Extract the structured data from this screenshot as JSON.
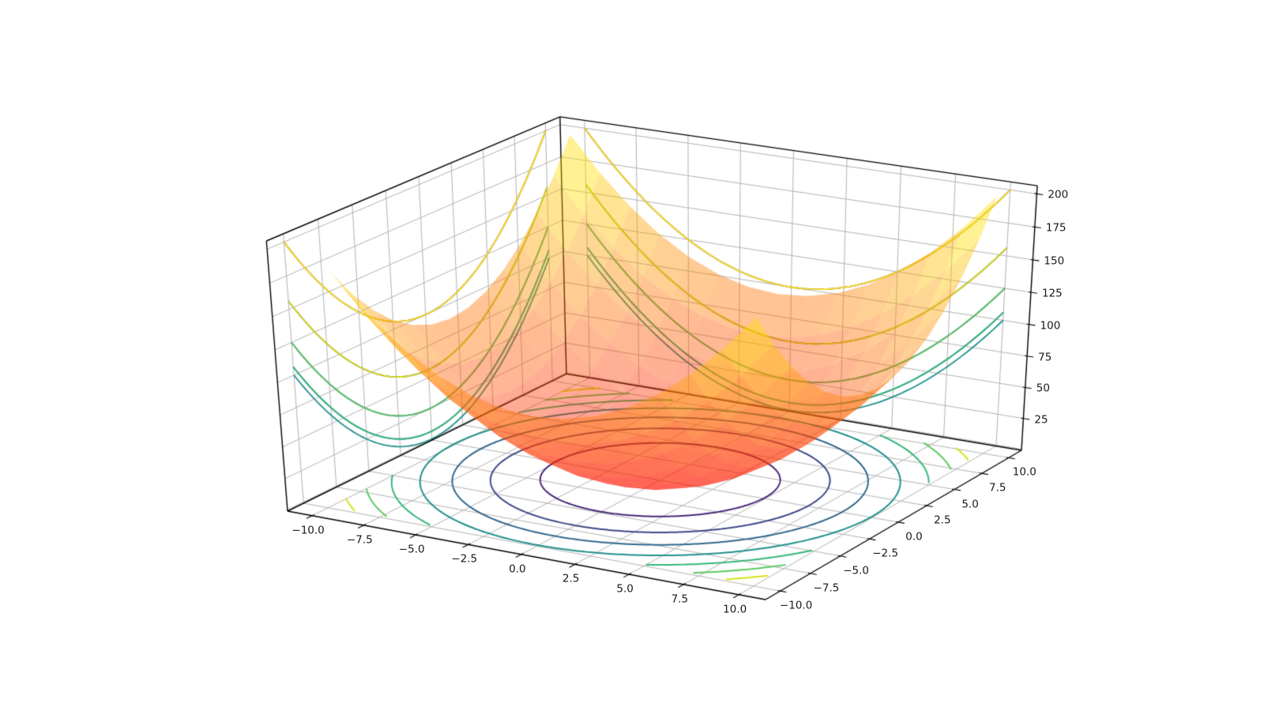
{
  "chart_data": {
    "type": "surface3d",
    "title": "",
    "function": "z = x^2 + y^2",
    "view": {
      "elev": 30,
      "azim": -60,
      "dist": 10,
      "z_aspect": 0.75,
      "projection": "perspective"
    },
    "axes_limits": {
      "x": [
        -11.2,
        11.2
      ],
      "y": [
        -11.2,
        11.2
      ],
      "z": [
        -1,
        206
      ]
    },
    "x_axis": {
      "data_range": [
        -10,
        10
      ],
      "tick_values": [
        -10,
        -7.5,
        -5,
        -2.5,
        0,
        2.5,
        5,
        7.5,
        10
      ],
      "tick_labels": [
        "−10.0",
        "−7.5",
        "−5.0",
        "−2.5",
        "0.0",
        "2.5",
        "5.0",
        "7.5",
        "10.0"
      ]
    },
    "y_axis": {
      "data_range": [
        -10,
        10
      ],
      "tick_values": [
        -10,
        -7.5,
        -5,
        -2.5,
        0,
        2.5,
        5,
        7.5,
        10
      ],
      "tick_labels": [
        "−10.0",
        "−7.5",
        "−5.0",
        "−2.5",
        "0.0",
        "2.5",
        "5.0",
        "7.5",
        "10.0"
      ]
    },
    "z_axis": {
      "data_range": [
        0,
        200
      ],
      "tick_values": [
        25,
        50,
        75,
        100,
        125,
        150,
        175,
        200
      ],
      "tick_labels": [
        "25",
        "50",
        "75",
        "100",
        "125",
        "150",
        "175",
        "200"
      ],
      "grid_values": [
        0,
        25,
        50,
        75,
        100,
        125,
        150,
        175,
        200
      ]
    },
    "surface": {
      "expression": "x*x + y*y",
      "x_range": [
        -10,
        10
      ],
      "y_range": [
        -10,
        10
      ],
      "z_range": [
        0,
        200
      ],
      "colormap": "autumn",
      "alpha": 0.42,
      "grid_segments": 14
    },
    "contour_projections": {
      "floor": {
        "zdir": "z",
        "offset": 0,
        "levels": [
          25,
          50,
          75,
          100,
          125,
          150,
          175
        ],
        "colormap": "viridis",
        "norm_range": [
          0,
          200
        ]
      },
      "left_wall": {
        "zdir": "x",
        "offset": -11.2,
        "levels": [
          -10,
          -7.5,
          -5,
          -2.5,
          0,
          2.5,
          5,
          7.5,
          10
        ],
        "colormap": "viridis",
        "norm_range": [
          -10,
          10
        ]
      },
      "right_wall": {
        "zdir": "y",
        "offset": 11.2,
        "levels": [
          -10,
          -7.5,
          -5,
          -2.5,
          0,
          2.5,
          5,
          7.5,
          10
        ],
        "colormap": "viridis",
        "norm_range": [
          -10,
          10
        ]
      }
    },
    "calibration_anchors": {
      "A": [
        364,
        647
      ],
      "E": [
        969,
        759
      ],
      "D": [
        1293,
        570
      ],
      "B_y": 305
    },
    "style": {
      "background": "#ffffff",
      "grid_color": "#b3b3b3",
      "axis_color": "#000000",
      "tick_label_color": "#1a1a1a",
      "grid_linewidth": 1.0,
      "axis_linewidth": 1.4,
      "floor_contour_linewidth": 2.0,
      "wall_contour_linewidth": 1.8,
      "viridis_stops": [
        [
          0,
          "#440154"
        ],
        [
          0.125,
          "#482878"
        ],
        [
          0.25,
          "#3e4a89"
        ],
        [
          0.375,
          "#31688e"
        ],
        [
          0.5,
          "#21918c"
        ],
        [
          0.625,
          "#35b779"
        ],
        [
          0.75,
          "#5ec962"
        ],
        [
          0.875,
          "#d8e219"
        ],
        [
          1,
          "#fde725"
        ]
      ],
      "autumn_stops": [
        [
          0,
          "#ff0000"
        ],
        [
          1,
          "#ffff00"
        ]
      ]
    }
  }
}
